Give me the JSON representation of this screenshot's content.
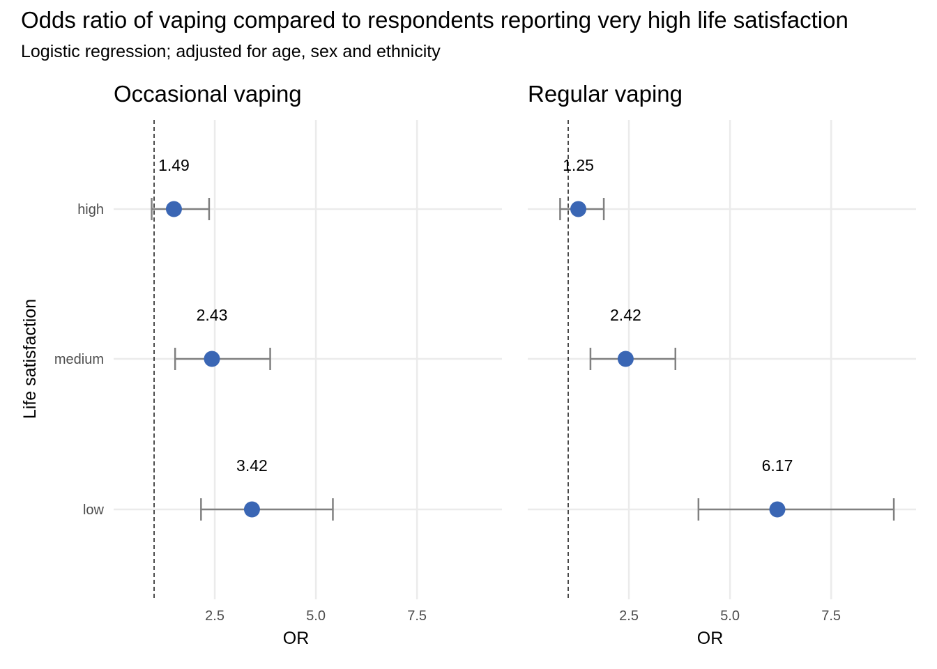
{
  "chart": {
    "title": "Odds ratio of vaping compared to respondents reporting very high life satisfaction",
    "subtitle": "Logistic regression; adjusted for age, sex and ethnicity",
    "ylabel": "Life satisfaction"
  },
  "chart_data": {
    "type": "forest",
    "title": "Odds ratio of vaping compared to respondents reporting very high life satisfaction",
    "subtitle": "Logistic regression; adjusted for age, sex and ethnicity",
    "xlabel": "OR",
    "ylabel": "Life satisfaction",
    "categories": [
      "high",
      "medium",
      "low"
    ],
    "xlim": [
      0,
      9.6
    ],
    "xticks": [
      2.5,
      5.0,
      7.5
    ],
    "xtick_labels": [
      "2.5",
      "5.0",
      "7.5"
    ],
    "reference_line": 1,
    "grid": true,
    "point_color": "#3a66b4",
    "errorbar_color": "#808080",
    "panels": [
      {
        "name": "Occasional vaping",
        "points": [
          {
            "category": "high",
            "or": 1.49,
            "lower": 0.94,
            "upper": 2.36,
            "label": "1.49"
          },
          {
            "category": "medium",
            "or": 2.43,
            "lower": 1.52,
            "upper": 3.87,
            "label": "2.43"
          },
          {
            "category": "low",
            "or": 3.42,
            "lower": 2.16,
            "upper": 5.42,
            "label": "3.42"
          }
        ]
      },
      {
        "name": "Regular vaping",
        "points": [
          {
            "category": "high",
            "or": 1.25,
            "lower": 0.8,
            "upper": 1.88,
            "label": "1.25"
          },
          {
            "category": "medium",
            "or": 2.42,
            "lower": 1.55,
            "upper": 3.65,
            "label": "2.42"
          },
          {
            "category": "low",
            "or": 6.17,
            "lower": 4.22,
            "upper": 9.05,
            "label": "6.17"
          }
        ]
      }
    ]
  }
}
